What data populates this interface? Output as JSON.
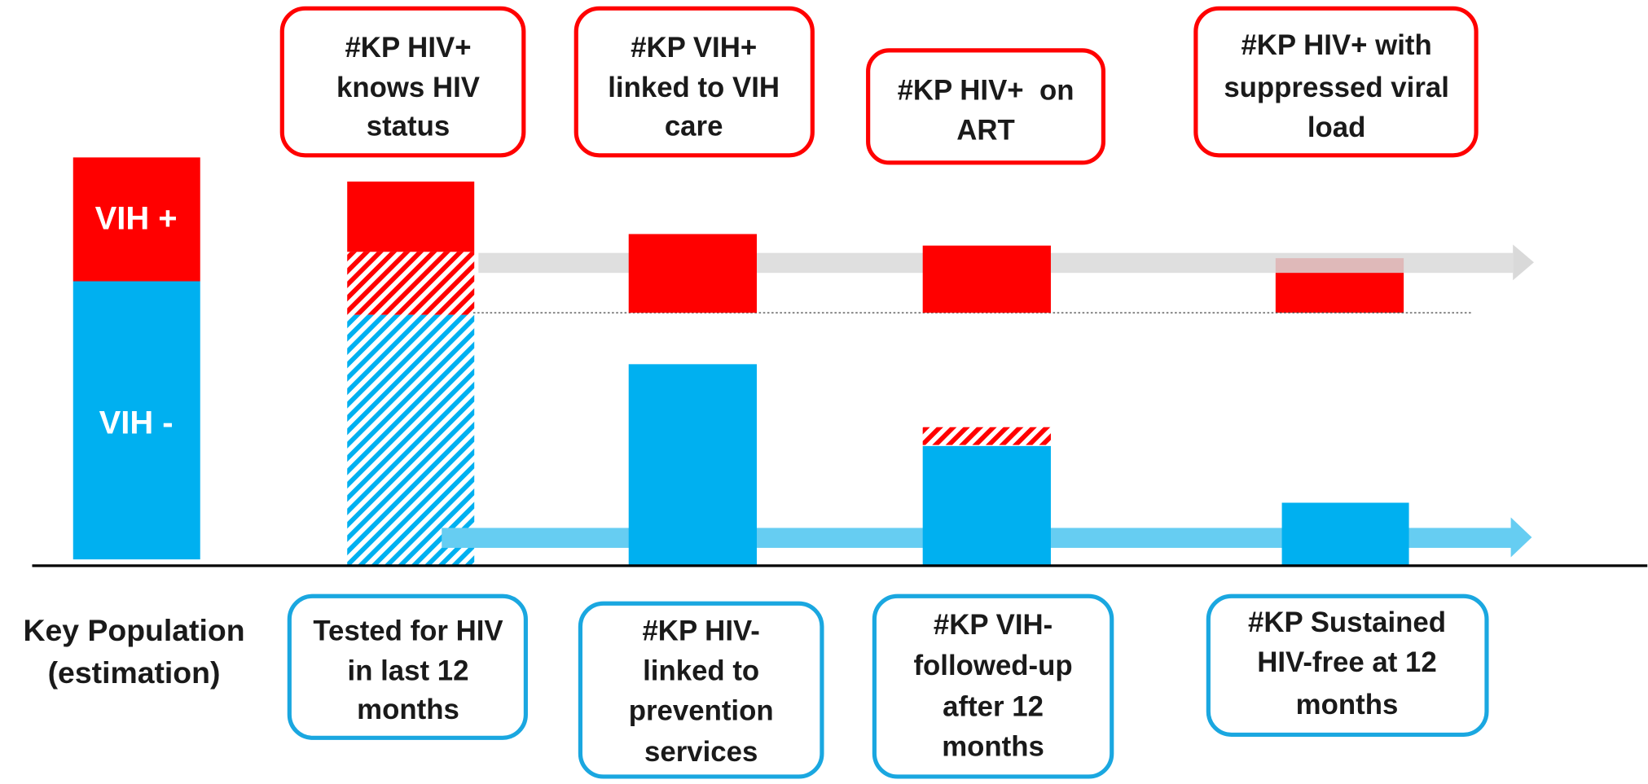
{
  "left_bar": {
    "positive": "VIH +",
    "negative": "VIH -"
  },
  "row_label": [
    "Key Population",
    "(estimation)"
  ],
  "top_boxes": [
    [
      "#KP HIV+",
      "knows HIV",
      "status"
    ],
    [
      "#KP VIH+",
      "linked to VIH",
      "care"
    ],
    [
      "#KP HIV+  on",
      "ART"
    ],
    [
      "#KP HIV+ with",
      "suppressed viral",
      "load"
    ]
  ],
  "bottom_boxes": [
    [
      "Tested for HIV",
      "in last 12",
      "months"
    ],
    [
      "#KP HIV-",
      "linked to",
      "prevention",
      "services"
    ],
    [
      "#KP VIH-",
      "followed-up",
      "after 12",
      "months"
    ],
    [
      "#KP Sustained",
      "HIV-free at 12",
      "months"
    ]
  ]
}
